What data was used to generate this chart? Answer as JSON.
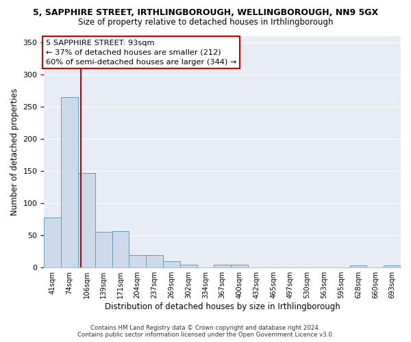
{
  "title": "5, SAPPHIRE STREET, IRTHLINGBOROUGH, WELLINGBOROUGH, NN9 5GX",
  "subtitle": "Size of property relative to detached houses in Irthlingborough",
  "xlabel": "Distribution of detached houses by size in Irthlingborough",
  "ylabel": "Number of detached properties",
  "bar_color": "#ccdaeb",
  "bar_edge_color": "#6699bb",
  "background_color": "#e8ecf5",
  "grid_color": "#ffffff",
  "fig_facecolor": "#ffffff",
  "categories": [
    "41sqm",
    "74sqm",
    "106sqm",
    "139sqm",
    "171sqm",
    "204sqm",
    "237sqm",
    "269sqm",
    "302sqm",
    "334sqm",
    "367sqm",
    "400sqm",
    "432sqm",
    "465sqm",
    "497sqm",
    "530sqm",
    "563sqm",
    "595sqm",
    "628sqm",
    "660sqm",
    "693sqm"
  ],
  "values": [
    78,
    265,
    147,
    56,
    57,
    19,
    19,
    10,
    4,
    0,
    4,
    4,
    0,
    0,
    0,
    0,
    0,
    0,
    3,
    0,
    3
  ],
  "ylim": [
    0,
    360
  ],
  "yticks": [
    0,
    50,
    100,
    150,
    200,
    250,
    300,
    350
  ],
  "property_line_x": 1.65,
  "annotation_text": "5 SAPPHIRE STREET: 93sqm\n← 37% of detached houses are smaller (212)\n60% of semi-detached houses are larger (344) →",
  "annotation_box_color": "#ffffff",
  "annotation_box_edge": "#cc0000",
  "red_line_color": "#cc0000",
  "footer": "Contains HM Land Registry data © Crown copyright and database right 2024.\nContains public sector information licensed under the Open Government Licence v3.0."
}
